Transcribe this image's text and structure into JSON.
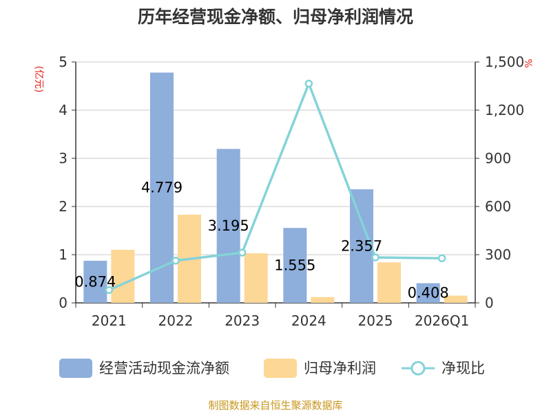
{
  "chart_data": {
    "type": "bar",
    "title": "历年经营现金净额、归母净利润情况",
    "categories": [
      "2021",
      "2022",
      "2023",
      "2024",
      "2025",
      "2026Q1"
    ],
    "left_axis": {
      "unit": "(亿元)",
      "ylim": [
        0,
        5
      ],
      "ticks": [
        "0",
        "1",
        "2",
        "3",
        "4",
        "5"
      ]
    },
    "right_axis": {
      "unit": "%",
      "ylim": [
        0,
        1500
      ],
      "ticks": [
        "0",
        "300",
        "600",
        "900",
        "1,200",
        "1,500"
      ]
    },
    "grid": true,
    "legend_position": "bottom",
    "series": [
      {
        "name": "经营活动现金流净额",
        "type": "bar",
        "axis": "left",
        "color": "#8eaedb",
        "values": [
          0.874,
          4.779,
          3.195,
          1.555,
          2.357,
          0.408
        ],
        "labels": [
          "0.874",
          "4.779",
          "3.195",
          "1.555",
          "2.357",
          "0.408"
        ]
      },
      {
        "name": "归母净利润",
        "type": "bar",
        "axis": "left",
        "color": "#fdd796",
        "values": [
          1.1,
          1.83,
          1.03,
          0.12,
          0.84,
          0.15
        ]
      },
      {
        "name": "净现比",
        "type": "line",
        "axis": "right",
        "color": "#84d3d8",
        "values": [
          80,
          263,
          313,
          1365,
          283,
          278
        ]
      }
    ],
    "source_note": "制图数据来自恒生聚源数据库"
  }
}
